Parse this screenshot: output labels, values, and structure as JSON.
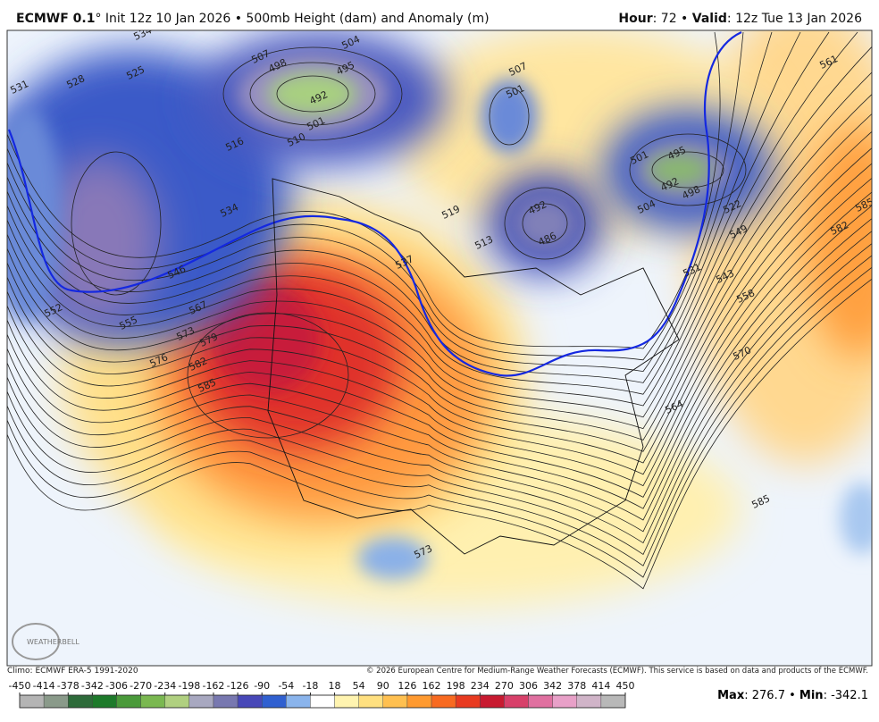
{
  "header": {
    "model": "ECMWF 0.1",
    "details": "° Init 12z 10 Jan 2026 • 500mb Height (dam) and Anomaly (m)",
    "hour_label": "Hour",
    "hour": "72",
    "valid_label": "Valid",
    "valid": "12z Tue 13 Jan 2026"
  },
  "contour_labels": [
    "534",
    "531",
    "528",
    "525",
    "507",
    "498",
    "504",
    "495",
    "492",
    "501",
    "510",
    "516",
    "534",
    "546",
    "552",
    "555",
    "567",
    "573",
    "576",
    "579",
    "582",
    "585",
    "537",
    "519",
    "513",
    "501",
    "507",
    "492",
    "486",
    "495",
    "492",
    "498",
    "501",
    "504",
    "522",
    "531",
    "549",
    "543",
    "558",
    "570",
    "564",
    "582",
    "585",
    "561",
    "585",
    "573"
  ],
  "logo": "WEATHERBELL",
  "footer": {
    "climo": "Climo: ECMWF ERA-5 1991-2020",
    "copyright": "© 2026 European Centre for Medium-Range Weather Forecasts (ECMWF). This service is based on data and products of the ECMWF."
  },
  "colorbar": {
    "ticks": [
      -450,
      -414,
      -378,
      -342,
      -306,
      -270,
      -234,
      -198,
      -162,
      -126,
      -90,
      -54,
      -18,
      18,
      54,
      90,
      126,
      162,
      198,
      234,
      270,
      306,
      342,
      378,
      414,
      450
    ],
    "colors": [
      "#b4b4b4",
      "#8a9a8a",
      "#2e6b3a",
      "#1d7a2a",
      "#4a9a3a",
      "#7ab850",
      "#b0d080",
      "#a8a8c0",
      "#7878b0",
      "#4848b8",
      "#3060d0",
      "#8ab4ec",
      "#ffffff",
      "#fff4b0",
      "#ffe080",
      "#ffc050",
      "#ff9a30",
      "#f86a20",
      "#e83a20",
      "#c81a30",
      "#d8406a",
      "#e070a0",
      "#e8a0c8",
      "#d0b4c8",
      "#b8b8b8"
    ]
  },
  "stats": {
    "max_label": "Max",
    "max": 276.7,
    "min_label": "Min",
    "min": -342.1
  }
}
